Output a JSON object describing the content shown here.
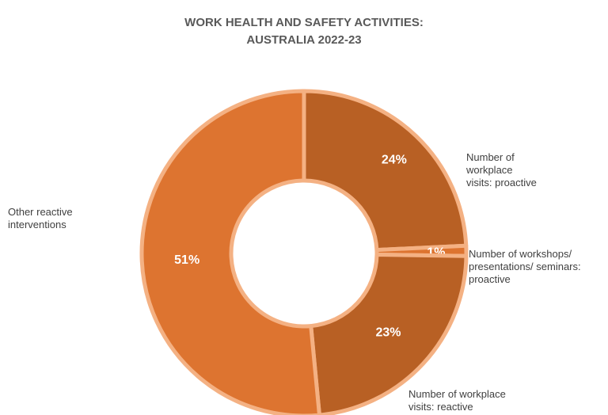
{
  "chart_data": {
    "type": "pie",
    "title_lines": [
      "WORK HEALTH AND SAFETY ACTIVITIES:",
      "AUSTRALIA 2022-23"
    ],
    "categories": [
      "Number of workplace visits: proactive",
      "Number of workshops/ presentations/ seminars: proactive",
      "Number of workplace visits: reactive",
      "Other reactive interventions"
    ],
    "values": [
      24,
      1,
      23,
      51
    ],
    "value_labels": [
      "24%",
      "1%",
      "23%",
      "51%"
    ],
    "style": "donut",
    "start_angle": "top",
    "direction": "clockwise",
    "colors": [
      "#B86024",
      "#DD7430",
      "#B86024",
      "#DD7430"
    ],
    "border_color": "#F4B183",
    "legend": "none"
  },
  "labels": {
    "visits_proactive": [
      "Number of",
      "workplace",
      "visits: proactive"
    ],
    "workshops": [
      "Number of workshops/",
      "presentations/ seminars:",
      "proactive"
    ],
    "visits_reactive": [
      "Number of workplace",
      "visits: reactive"
    ],
    "other": [
      "Other reactive",
      "interventions"
    ]
  }
}
